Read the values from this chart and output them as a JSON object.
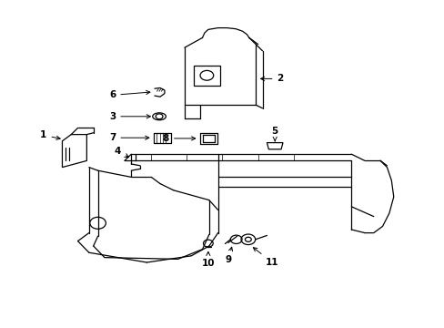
{
  "background_color": "#ffffff",
  "line_color": "#000000",
  "lw": 0.9,
  "fontsize": 7.5,
  "parts_labels": {
    "1": [
      0.095,
      0.535,
      0.145,
      0.575
    ],
    "2": [
      0.62,
      0.76,
      0.545,
      0.76
    ],
    "3": [
      0.27,
      0.615,
      0.335,
      0.615
    ],
    "4": [
      0.285,
      0.535,
      0.31,
      0.51
    ],
    "5": [
      0.62,
      0.59,
      0.618,
      0.565
    ],
    "6": [
      0.26,
      0.71,
      0.33,
      0.71
    ],
    "7": [
      0.26,
      0.64,
      0.335,
      0.64
    ],
    "8": [
      0.38,
      0.58,
      0.44,
      0.58
    ],
    "9": [
      0.545,
      0.205,
      0.545,
      0.24
    ],
    "10": [
      0.47,
      0.185,
      0.47,
      0.23
    ],
    "11": [
      0.61,
      0.195,
      0.595,
      0.225
    ]
  }
}
